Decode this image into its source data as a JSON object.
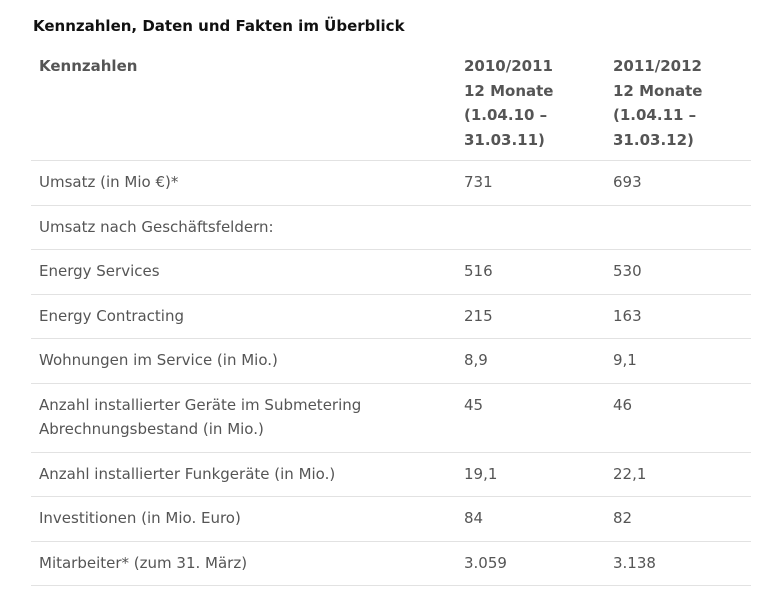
{
  "title": "Kennzahlen, Daten und Fakten im Überblick",
  "table": {
    "header": {
      "label": "Kennzahlen",
      "col1": [
        "2010/2011",
        "12 Monate",
        "(1.04.10 –",
        "31.03.11)"
      ],
      "col2": [
        "2011/2012",
        "12 Monate",
        "(1.04.11 –",
        "31.03.12)"
      ]
    },
    "rows": [
      {
        "label": "Umsatz (in Mio €)*",
        "v1": "731",
        "v2": "693"
      },
      {
        "label": "Umsatz nach Geschäftsfeldern:",
        "v1": "",
        "v2": ""
      },
      {
        "label": "Energy Services",
        "v1": "516",
        "v2": "530"
      },
      {
        "label": "Energy Contracting",
        "v1": "215",
        "v2": "163"
      },
      {
        "label": "Wohnungen im Service (in Mio.)",
        "v1": "8,9",
        "v2": "9,1"
      },
      {
        "label": "Anzahl installierter Geräte im Submetering Abrechnungsbestand (in Mio.)",
        "v1": "45",
        "v2": "46"
      },
      {
        "label": "Anzahl installierter Funkgeräte (in Mio.)",
        "v1": "19,1",
        "v2": "22,1"
      },
      {
        "label": "Investitionen (in Mio. Euro)",
        "v1": "84",
        "v2": "82"
      },
      {
        "label": "Mitarbeiter* (zum 31. März)",
        "v1": "3.059",
        "v2": "3.138"
      }
    ]
  }
}
